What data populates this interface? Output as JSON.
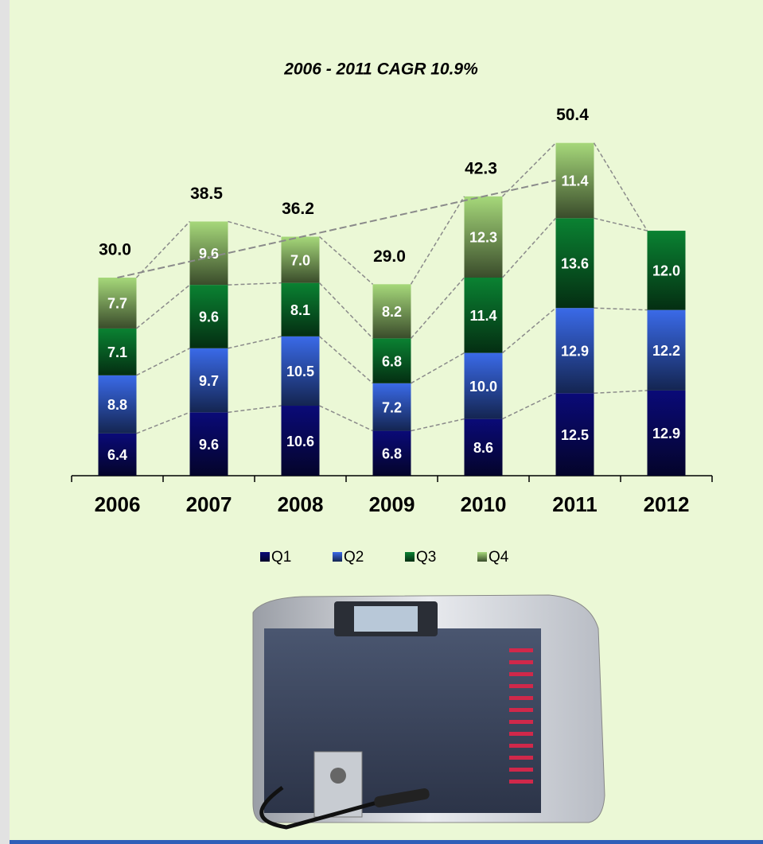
{
  "chart_data": {
    "type": "stacked_bar",
    "title": "2006 - 2011 CAGR 10.9%",
    "categories": [
      "2006",
      "2007",
      "2008",
      "2009",
      "2010",
      "2011",
      "2012"
    ],
    "series": [
      {
        "name": "Q1",
        "color": "#0a0a78",
        "values": [
          6.4,
          9.6,
          10.6,
          6.8,
          8.6,
          12.5,
          12.9
        ],
        "value_labels": [
          "6.4",
          "9.6",
          "10.6",
          "6.8",
          "8.6",
          "12.5",
          "12.9"
        ]
      },
      {
        "name": "Q2",
        "color": "#3a6ae8",
        "values": [
          8.8,
          9.7,
          10.5,
          7.2,
          10.0,
          12.9,
          12.2
        ],
        "value_labels": [
          "8.8",
          "9.7",
          "10.5",
          "7.2",
          "10.0",
          "12.9",
          "12.2"
        ]
      },
      {
        "name": "Q3",
        "color": "#0a8232",
        "values": [
          7.1,
          9.6,
          8.1,
          6.8,
          11.4,
          13.6,
          12.0
        ],
        "value_labels": [
          "7.1",
          "9.6",
          "8.1",
          "6.8",
          "11.4",
          "13.6",
          "12.0"
        ]
      },
      {
        "name": "Q4",
        "color": "#a6d87a",
        "values": [
          7.7,
          9.6,
          7.0,
          8.2,
          12.3,
          11.4,
          null
        ],
        "value_labels": [
          "7.7",
          "9.6",
          "7.0",
          "8.2",
          "12.3",
          "11.4",
          null
        ]
      }
    ],
    "totals": {
      "values": [
        30.0,
        38.5,
        36.2,
        29.0,
        42.3,
        50.4,
        null
      ],
      "value_labels": [
        "30.0",
        "38.5",
        "36.2",
        "29.0",
        "42.3",
        "50.4",
        null
      ]
    },
    "ylim": [
      0,
      60
    ],
    "legend": "bottom"
  }
}
